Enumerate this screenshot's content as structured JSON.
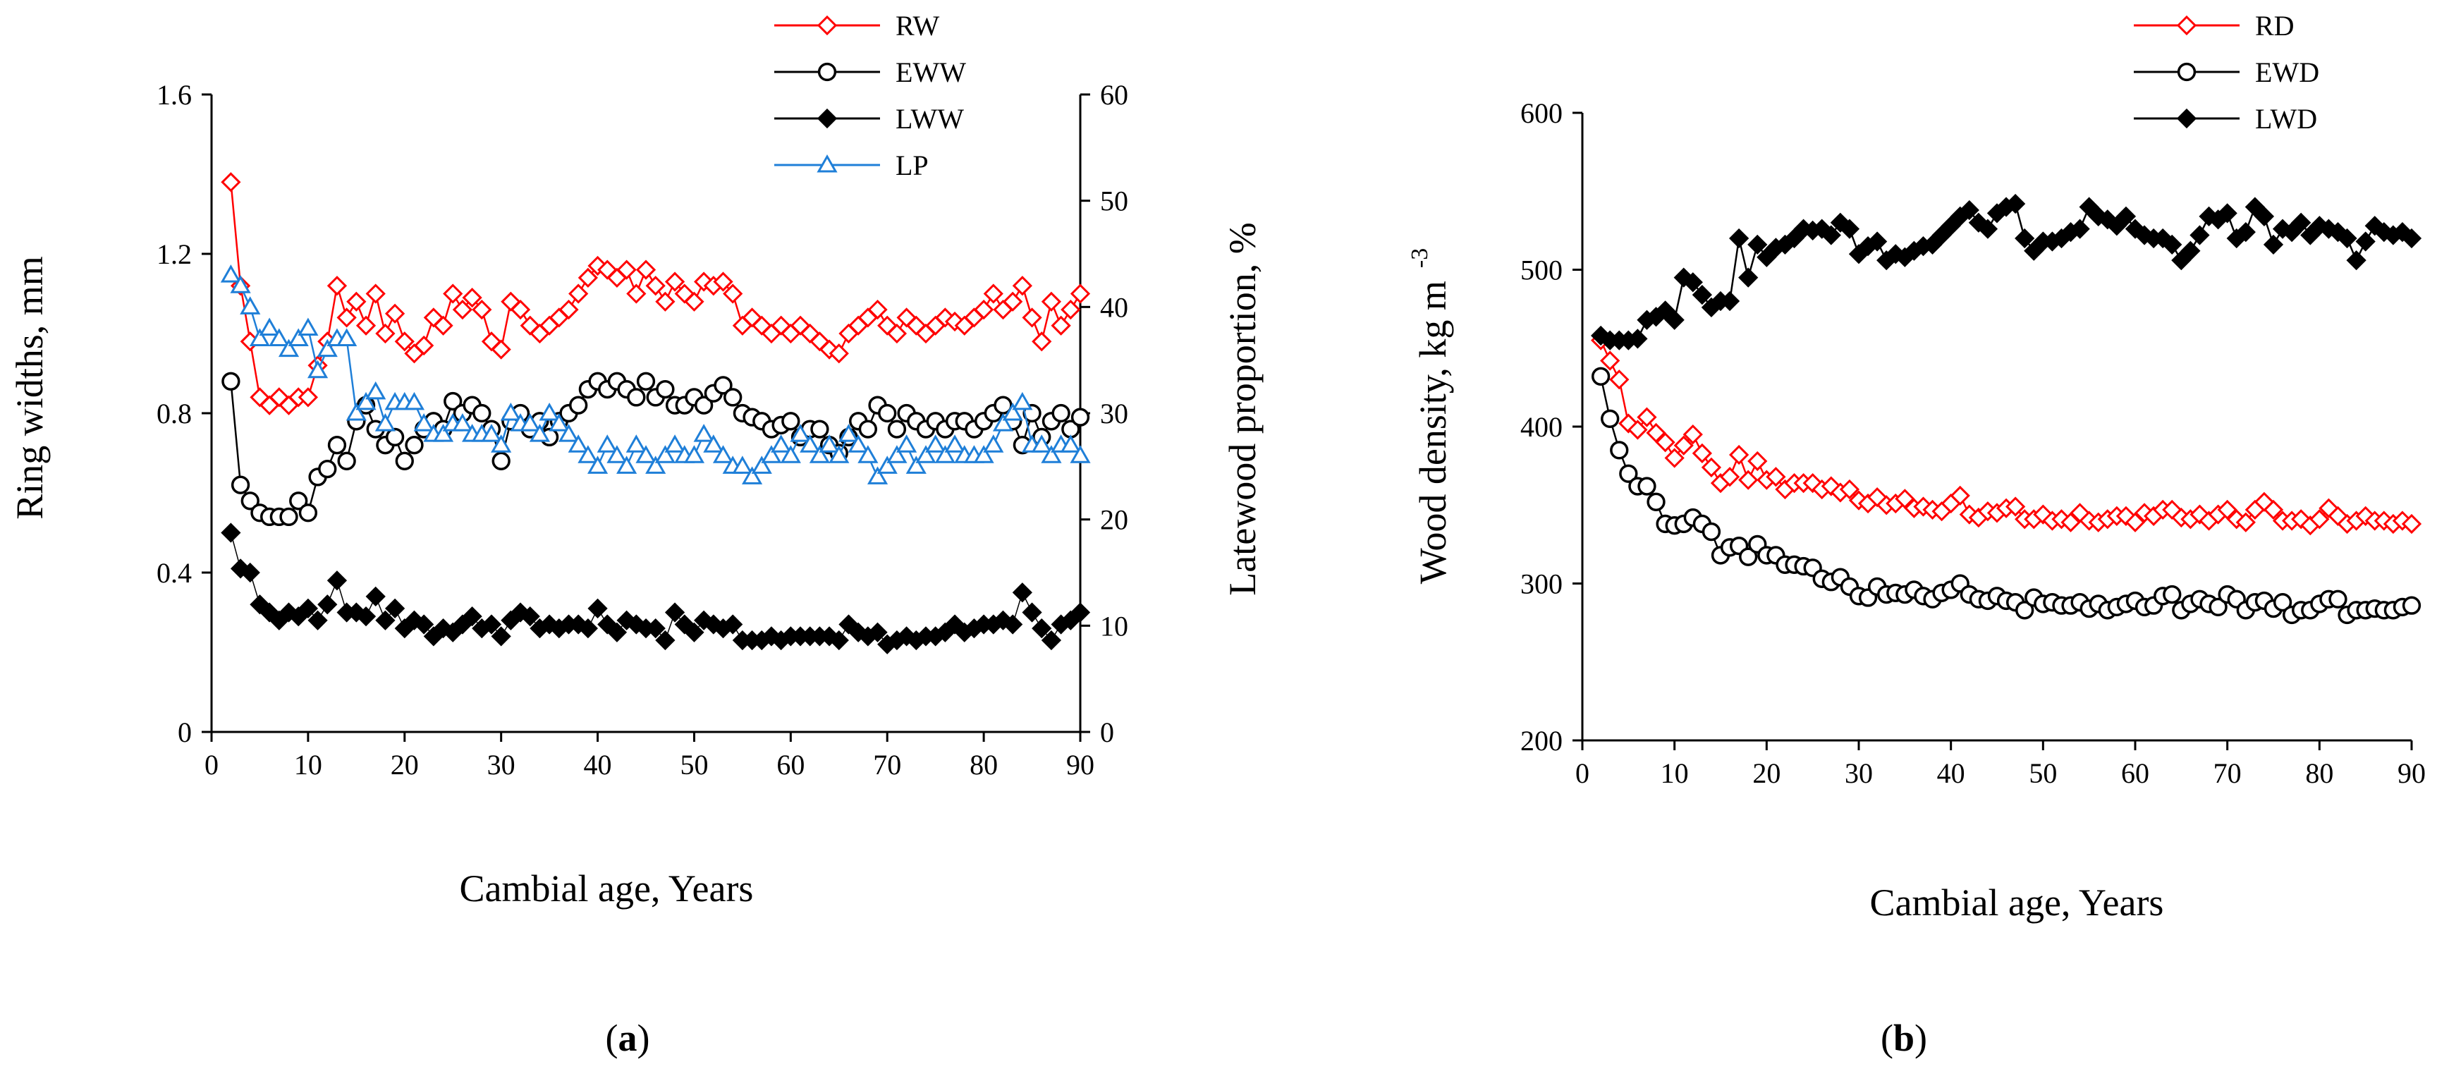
{
  "chart_data": [
    {
      "type": "line",
      "panel_label": "(a)",
      "xlabel": "Cambial age, Years",
      "ylabel": "Ring widths, mm",
      "y2label": "Latewood proportion, %",
      "xlim": [
        0,
        90
      ],
      "ylim": [
        0,
        1.6
      ],
      "y2lim": [
        0,
        60
      ],
      "x_ticks": [
        0,
        10,
        20,
        30,
        40,
        50,
        60,
        70,
        80,
        90
      ],
      "x_tick_labels": [
        "0",
        "10",
        "20",
        "30",
        "40",
        "50",
        "60",
        "70",
        "80",
        "90"
      ],
      "y_ticks": [
        0,
        0.4,
        0.8,
        1.2,
        1.6
      ],
      "y_tick_labels": [
        "0",
        "0.4",
        "0.8",
        "1.2",
        "1.6"
      ],
      "y2_ticks": [
        0,
        10,
        20,
        30,
        40,
        50,
        60
      ],
      "y2_tick_labels": [
        "0",
        "10",
        "20",
        "30",
        "40",
        "50",
        "60"
      ],
      "legend_position": "top-right",
      "x": [
        2,
        3,
        4,
        5,
        6,
        7,
        8,
        9,
        10,
        11,
        12,
        13,
        14,
        15,
        16,
        17,
        18,
        19,
        20,
        21,
        22,
        23,
        24,
        25,
        26,
        27,
        28,
        29,
        30,
        31,
        32,
        33,
        34,
        35,
        36,
        37,
        38,
        39,
        40,
        41,
        42,
        43,
        44,
        45,
        46,
        47,
        48,
        49,
        50,
        51,
        52,
        53,
        54,
        55,
        56,
        57,
        58,
        59,
        60,
        61,
        62,
        63,
        64,
        65,
        66,
        67,
        68,
        69,
        70,
        71,
        72,
        73,
        74,
        75,
        76,
        77,
        78,
        79,
        80,
        81,
        82,
        83,
        84,
        85,
        86,
        87,
        88,
        89,
        90
      ],
      "series": [
        {
          "name": "RW",
          "axis": "left",
          "color": "#ff0000",
          "marker": "diamond-open",
          "values": [
            1.38,
            1.12,
            0.98,
            0.84,
            0.82,
            0.84,
            0.82,
            0.84,
            0.84,
            0.92,
            0.98,
            1.12,
            1.04,
            1.08,
            1.02,
            1.1,
            1.0,
            1.05,
            0.98,
            0.95,
            0.97,
            1.04,
            1.02,
            1.1,
            1.06,
            1.09,
            1.06,
            0.98,
            0.96,
            1.08,
            1.06,
            1.02,
            1.0,
            1.02,
            1.04,
            1.06,
            1.1,
            1.14,
            1.17,
            1.16,
            1.14,
            1.16,
            1.1,
            1.16,
            1.12,
            1.08,
            1.13,
            1.1,
            1.08,
            1.13,
            1.12,
            1.13,
            1.1,
            1.02,
            1.04,
            1.02,
            1.0,
            1.02,
            1.0,
            1.02,
            1.0,
            0.98,
            0.96,
            0.95,
            1.0,
            1.02,
            1.04,
            1.06,
            1.02,
            1.0,
            1.04,
            1.02,
            1.0,
            1.02,
            1.04,
            1.03,
            1.02,
            1.04,
            1.06,
            1.1,
            1.06,
            1.08,
            1.12,
            1.04,
            0.98,
            1.08,
            1.02,
            1.06,
            1.1
          ]
        },
        {
          "name": "EWW",
          "axis": "left",
          "color": "#000000",
          "marker": "circle-open",
          "values": [
            0.88,
            0.62,
            0.58,
            0.55,
            0.54,
            0.54,
            0.54,
            0.58,
            0.55,
            0.64,
            0.66,
            0.72,
            0.68,
            0.78,
            0.82,
            0.76,
            0.72,
            0.74,
            0.68,
            0.72,
            0.76,
            0.78,
            0.76,
            0.83,
            0.8,
            0.82,
            0.8,
            0.76,
            0.68,
            0.78,
            0.8,
            0.76,
            0.78,
            0.74,
            0.78,
            0.8,
            0.82,
            0.86,
            0.88,
            0.86,
            0.88,
            0.86,
            0.84,
            0.88,
            0.84,
            0.86,
            0.82,
            0.82,
            0.84,
            0.82,
            0.85,
            0.87,
            0.84,
            0.8,
            0.79,
            0.78,
            0.76,
            0.77,
            0.78,
            0.74,
            0.76,
            0.76,
            0.72,
            0.7,
            0.74,
            0.78,
            0.76,
            0.82,
            0.8,
            0.76,
            0.8,
            0.78,
            0.76,
            0.78,
            0.76,
            0.78,
            0.78,
            0.76,
            0.78,
            0.8,
            0.82,
            0.78,
            0.72,
            0.8,
            0.74,
            0.78,
            0.8,
            0.76,
            0.79
          ]
        },
        {
          "name": "LWW",
          "axis": "left",
          "color": "#000000",
          "marker": "diamond-filled",
          "values": [
            0.5,
            0.41,
            0.4,
            0.32,
            0.3,
            0.28,
            0.3,
            0.29,
            0.31,
            0.28,
            0.32,
            0.38,
            0.3,
            0.3,
            0.29,
            0.34,
            0.28,
            0.31,
            0.26,
            0.28,
            0.27,
            0.24,
            0.26,
            0.25,
            0.27,
            0.29,
            0.26,
            0.27,
            0.24,
            0.28,
            0.3,
            0.29,
            0.26,
            0.27,
            0.26,
            0.27,
            0.27,
            0.26,
            0.31,
            0.27,
            0.25,
            0.28,
            0.27,
            0.26,
            0.26,
            0.23,
            0.3,
            0.27,
            0.25,
            0.28,
            0.27,
            0.26,
            0.27,
            0.23,
            0.23,
            0.23,
            0.24,
            0.23,
            0.24,
            0.24,
            0.24,
            0.24,
            0.24,
            0.23,
            0.27,
            0.25,
            0.24,
            0.25,
            0.22,
            0.23,
            0.24,
            0.23,
            0.24,
            0.24,
            0.25,
            0.27,
            0.25,
            0.26,
            0.27,
            0.27,
            0.28,
            0.27,
            0.35,
            0.3,
            0.26,
            0.23,
            0.27,
            0.28,
            0.3
          ]
        },
        {
          "name": "LP",
          "axis": "right",
          "color": "#1f7fd8",
          "marker": "triangle-open",
          "values": [
            43,
            42,
            40,
            37,
            38,
            37,
            36,
            37,
            38,
            34,
            36,
            37,
            37,
            30,
            31,
            32,
            29,
            31,
            31,
            31,
            29,
            28,
            28,
            29,
            29,
            28,
            28,
            28,
            27,
            30,
            29,
            29,
            28,
            30,
            29,
            28,
            27,
            26,
            25,
            27,
            26,
            25,
            27,
            26,
            25,
            26,
            27,
            26,
            26,
            28,
            27,
            26,
            25,
            25,
            24,
            25,
            26,
            27,
            26,
            28,
            27,
            26,
            27,
            26,
            28,
            27,
            26,
            24,
            25,
            26,
            27,
            25,
            26,
            27,
            26,
            27,
            26,
            26,
            26,
            27,
            29,
            30,
            31,
            27,
            27,
            26,
            27,
            27,
            26
          ]
        }
      ]
    },
    {
      "type": "line",
      "panel_label": "(b)",
      "xlabel": "Cambial age, Years",
      "ylabel": "Wood density, kg m",
      "ylabel_superscript": "-3",
      "xlim": [
        0,
        90
      ],
      "ylim": [
        200,
        600
      ],
      "x_ticks": [
        0,
        10,
        20,
        30,
        40,
        50,
        60,
        70,
        80,
        90
      ],
      "x_tick_labels": [
        "0",
        "10",
        "20",
        "30",
        "40",
        "50",
        "60",
        "70",
        "80",
        "90"
      ],
      "y_ticks": [
        200,
        300,
        400,
        500,
        600
      ],
      "y_tick_labels": [
        "200",
        "300",
        "400",
        "500",
        "600"
      ],
      "legend_position": "top-right",
      "x": [
        2,
        3,
        4,
        5,
        6,
        7,
        8,
        9,
        10,
        11,
        12,
        13,
        14,
        15,
        16,
        17,
        18,
        19,
        20,
        21,
        22,
        23,
        24,
        25,
        26,
        27,
        28,
        29,
        30,
        31,
        32,
        33,
        34,
        35,
        36,
        37,
        38,
        39,
        40,
        41,
        42,
        43,
        44,
        45,
        46,
        47,
        48,
        49,
        50,
        51,
        52,
        53,
        54,
        55,
        56,
        57,
        58,
        59,
        60,
        61,
        62,
        63,
        64,
        65,
        66,
        67,
        68,
        69,
        70,
        71,
        72,
        73,
        74,
        75,
        76,
        77,
        78,
        79,
        80,
        81,
        82,
        83,
        84,
        85,
        86,
        87,
        88,
        89,
        90
      ],
      "series": [
        {
          "name": "RD",
          "color": "#ff0000",
          "marker": "diamond-open",
          "values": [
            455,
            442,
            430,
            402,
            398,
            406,
            396,
            390,
            380,
            388,
            395,
            383,
            374,
            364,
            368,
            382,
            366,
            378,
            366,
            368,
            360,
            364,
            364,
            364,
            360,
            362,
            358,
            360,
            353,
            351,
            355,
            350,
            351,
            354,
            348,
            349,
            347,
            346,
            351,
            356,
            344,
            342,
            346,
            345,
            348,
            349,
            341,
            341,
            344,
            340,
            341,
            339,
            345,
            340,
            339,
            341,
            343,
            343,
            339,
            345,
            343,
            347,
            347,
            342,
            341,
            344,
            340,
            344,
            347,
            341,
            339,
            347,
            352,
            347,
            340,
            340,
            341,
            337,
            341,
            348,
            343,
            338,
            340,
            343,
            340,
            340,
            338,
            340,
            338
          ]
        },
        {
          "name": "EWD",
          "color": "#000000",
          "marker": "circle-open",
          "values": [
            432,
            405,
            385,
            370,
            362,
            362,
            352,
            338,
            337,
            338,
            342,
            338,
            333,
            318,
            323,
            324,
            317,
            325,
            318,
            318,
            312,
            312,
            311,
            310,
            303,
            301,
            304,
            298,
            292,
            291,
            298,
            293,
            294,
            293,
            296,
            292,
            290,
            294,
            296,
            300,
            293,
            290,
            289,
            292,
            289,
            288,
            283,
            291,
            287,
            288,
            286,
            286,
            288,
            284,
            287,
            283,
            285,
            287,
            289,
            285,
            286,
            292,
            293,
            283,
            287,
            290,
            287,
            285,
            293,
            290,
            283,
            288,
            289,
            284,
            288,
            280,
            283,
            283,
            287,
            290,
            290,
            280,
            283,
            283,
            284,
            283,
            283,
            285,
            286
          ]
        },
        {
          "name": "LWD",
          "color": "#000000",
          "marker": "diamond-filled",
          "values": [
            458,
            455,
            455,
            455,
            456,
            468,
            470,
            474,
            468,
            495,
            492,
            484,
            476,
            480,
            480,
            520,
            495,
            516,
            508,
            514,
            516,
            520,
            526,
            525,
            526,
            522,
            530,
            526,
            510,
            515,
            518,
            506,
            510,
            508,
            512,
            515,
            516,
            522,
            528,
            534,
            538,
            530,
            526,
            536,
            540,
            542,
            520,
            512,
            518,
            518,
            520,
            524,
            526,
            540,
            534,
            532,
            528,
            534,
            526,
            522,
            520,
            520,
            516,
            506,
            512,
            522,
            534,
            532,
            536,
            520,
            524,
            540,
            534,
            516,
            526,
            524,
            530,
            522,
            528,
            526,
            524,
            520,
            506,
            518,
            528,
            524,
            522,
            524,
            520
          ]
        }
      ]
    }
  ]
}
